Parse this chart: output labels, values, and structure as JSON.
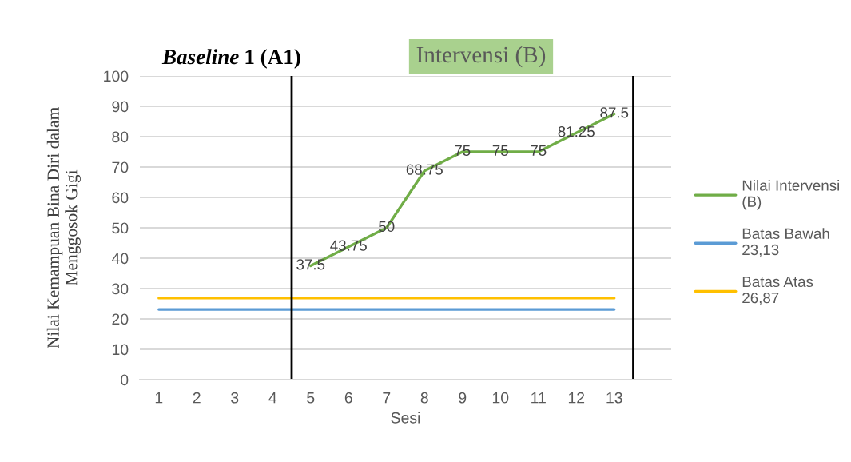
{
  "chart_data": {
    "type": "line",
    "xlabel": "Sesi",
    "ylabel": "Nilai Kemampuan Bina Diri dalam\nMenggosok Gigi",
    "xlim": [
      0.5,
      14.5
    ],
    "xticks": [
      1,
      2,
      3,
      4,
      5,
      6,
      7,
      8,
      9,
      10,
      11,
      12,
      13
    ],
    "ylim": [
      0,
      100
    ],
    "yticks": [
      0,
      10,
      20,
      30,
      40,
      50,
      60,
      70,
      80,
      90,
      100
    ],
    "grid": "y",
    "legend": "right",
    "series": [
      {
        "name": "Nilai Intervensi (B)",
        "color": "#70ad47",
        "x": [
          5,
          6,
          7,
          8,
          9,
          10,
          11,
          12,
          13
        ],
        "values": [
          37.5,
          43.75,
          50,
          68.75,
          75,
          75,
          75,
          81.25,
          87.5
        ],
        "value_labels": [
          "37.5",
          "43.75",
          "50",
          "68.75",
          "75",
          "75",
          "75",
          "81.25",
          "87.5"
        ]
      },
      {
        "name": "Batas Bawah 23,13",
        "color": "#5b9bd5",
        "x": [
          1,
          2,
          3,
          4,
          5,
          6,
          7,
          8,
          9,
          10,
          11,
          12,
          13
        ],
        "values": [
          23.13,
          23.13,
          23.13,
          23.13,
          23.13,
          23.13,
          23.13,
          23.13,
          23.13,
          23.13,
          23.13,
          23.13,
          23.13
        ]
      },
      {
        "name": "Batas Atas 26,87",
        "color": "#ffc000",
        "x": [
          1,
          2,
          3,
          4,
          5,
          6,
          7,
          8,
          9,
          10,
          11,
          12,
          13
        ],
        "values": [
          26.87,
          26.87,
          26.87,
          26.87,
          26.87,
          26.87,
          26.87,
          26.87,
          26.87,
          26.87,
          26.87,
          26.87,
          26.87
        ]
      }
    ],
    "ref_lines": [
      {
        "axis": "x",
        "value": 4.5,
        "color": "#000000"
      },
      {
        "axis": "x",
        "value": 13.5,
        "color": "#000000"
      }
    ],
    "annotations": [
      "Baseline 1 (A1)",
      "Intervensi (B)"
    ]
  }
}
